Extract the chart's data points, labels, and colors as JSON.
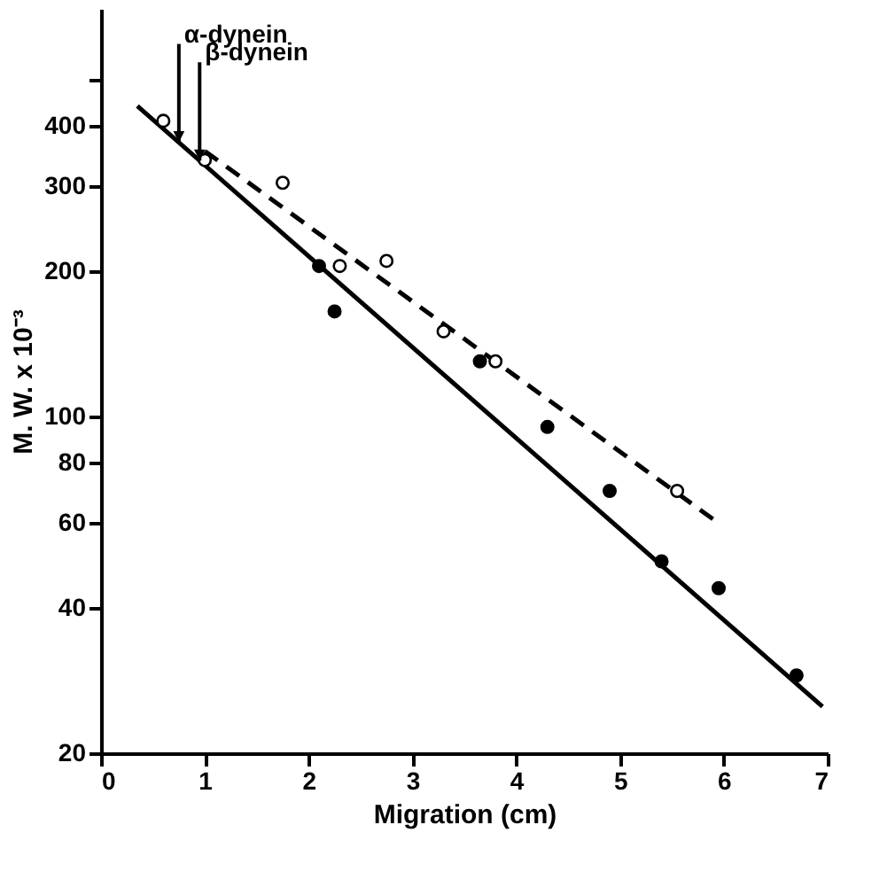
{
  "chart_data": {
    "type": "scatter",
    "xlabel": "Migration (cm)",
    "ylabel": "M. W. x 10⁻³",
    "xlim": [
      0,
      7
    ],
    "xticks": [
      0,
      1,
      2,
      3,
      4,
      5,
      6,
      7
    ],
    "ylim": [
      20,
      700
    ],
    "yticks": [
      20,
      40,
      60,
      80,
      100,
      200,
      300,
      400,
      {
        "value": 500,
        "label": null
      }
    ],
    "log": "y",
    "grid": false,
    "series": [
      {
        "marker": "circle",
        "color": "#ffffff",
        "x": [
          0.6,
          1.0,
          1.75,
          2.3,
          2.75,
          3.3,
          3.8,
          5.55
        ],
        "values": [
          410,
          340,
          305,
          205,
          210,
          150,
          130,
          70
        ]
      },
      {
        "marker": "circle",
        "color": "#000000",
        "x": [
          2.1,
          2.25,
          3.65,
          4.3,
          4.9,
          5.4,
          5.95,
          6.7
        ],
        "values": [
          205,
          165,
          130,
          95,
          70,
          50,
          44,
          29
        ]
      },
      {
        "type": "line",
        "marker": "none",
        "color": "#000000",
        "line_style": "solid",
        "x": [
          0.35,
          6.95
        ],
        "values": [
          440,
          25
        ]
      },
      {
        "type": "line",
        "marker": "none",
        "color": "#000000",
        "line_style": "dashed",
        "x": [
          1.0,
          5.95
        ],
        "values": [
          355,
          60
        ]
      }
    ],
    "annotations": [
      {
        "text": "α-dynein",
        "x": 0.75,
        "y": 370
      },
      {
        "text": "β-dynein",
        "x": 0.95,
        "y": 339
      }
    ]
  }
}
